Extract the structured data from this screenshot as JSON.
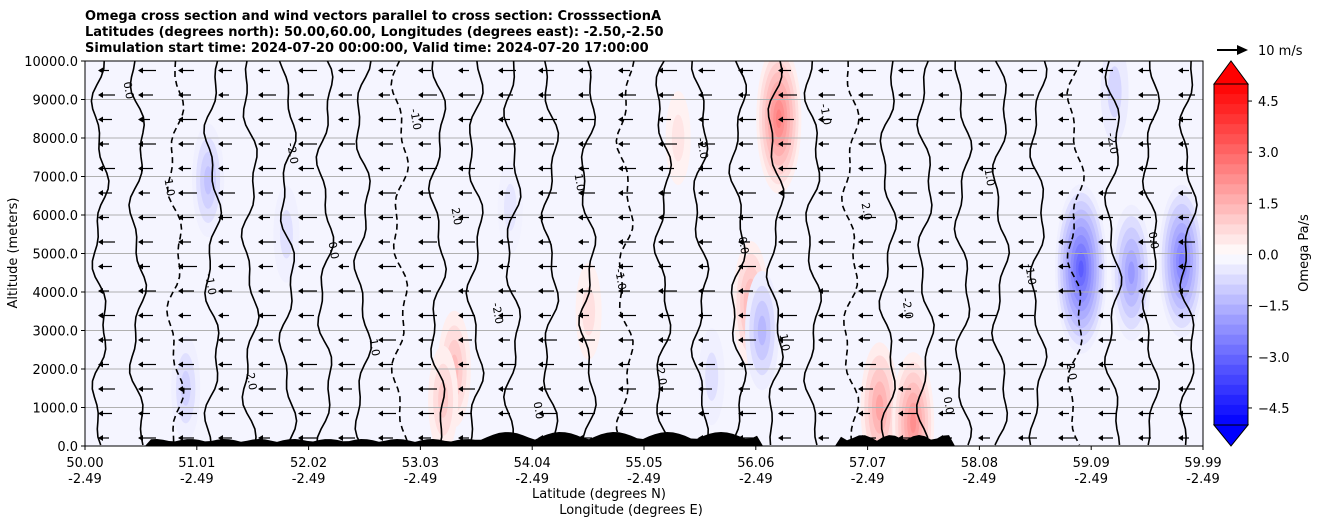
{
  "chart_data": {
    "type": "contour",
    "title": [
      "Omega cross section and wind vectors parallel to cross section: CrosssectionA",
      "Latitudes (degrees north): 50.00,60.00, Longitudes (degrees east): -2.50,-2.50",
      "Simulation start time: 2024-07-20 00:00:00, Valid time: 2024-07-20 17:00:00"
    ],
    "xlabel_lat": "Latitude (degrees N)",
    "xlabel_lon": "Longitude (degrees E)",
    "ylabel": "Altitude (meters)",
    "ylim": [
      0,
      10000
    ],
    "xlim": [
      50.0,
      59.99
    ],
    "yticks": [
      {
        "value": 0,
        "label": "0.0"
      },
      {
        "value": 1000,
        "label": "1000.0"
      },
      {
        "value": 2000,
        "label": "2000.0"
      },
      {
        "value": 3000,
        "label": "3000.0"
      },
      {
        "value": 4000,
        "label": "4000.0"
      },
      {
        "value": 5000,
        "label": "5000.0"
      },
      {
        "value": 6000,
        "label": "6000.0"
      },
      {
        "value": 7000,
        "label": "7000.0"
      },
      {
        "value": 8000,
        "label": "8000.0"
      },
      {
        "value": 9000,
        "label": "9000.0"
      },
      {
        "value": 10000,
        "label": "10000.0"
      }
    ],
    "xticks": [
      {
        "lat": "50.00",
        "lon": "-2.49"
      },
      {
        "lat": "51.01",
        "lon": "-2.49"
      },
      {
        "lat": "52.02",
        "lon": "-2.49"
      },
      {
        "lat": "53.03",
        "lon": "-2.49"
      },
      {
        "lat": "54.04",
        "lon": "-2.49"
      },
      {
        "lat": "55.05",
        "lon": "-2.49"
      },
      {
        "lat": "56.06",
        "lon": "-2.49"
      },
      {
        "lat": "57.07",
        "lon": "-2.49"
      },
      {
        "lat": "58.08",
        "lon": "-2.49"
      },
      {
        "lat": "59.09",
        "lon": "-2.49"
      },
      {
        "lat": "59.99",
        "lon": "-2.49"
      }
    ],
    "grid": true,
    "colorbar": {
      "label": "Omega Pa/s",
      "range": [
        -5.0,
        5.0
      ],
      "ticks": [
        "4.5",
        "3.0",
        "1.5",
        "0.0",
        "−1.5",
        "−3.0",
        "−4.5"
      ],
      "tick_values": [
        4.5,
        3.0,
        1.5,
        0.0,
        -1.5,
        -3.0,
        -4.5
      ],
      "extend": "both",
      "cmap": "bwr"
    },
    "quiver_key": {
      "label": "10 m/s"
    },
    "contour_labels": [
      "0.0",
      "1.0",
      "-1.0",
      "2.0",
      "-2.0"
    ],
    "omega_features": [
      {
        "x": 51.1,
        "y": 6900,
        "omega": -1.2
      },
      {
        "x": 53.3,
        "y": 2000,
        "omega": 1.3
      },
      {
        "x": 53.2,
        "y": 1200,
        "omega": 1.0
      },
      {
        "x": 55.95,
        "y": 3700,
        "omega": 1.6
      },
      {
        "x": 56.05,
        "y": 3000,
        "omega": -1.4
      },
      {
        "x": 56.2,
        "y": 8500,
        "omega": 2.5
      },
      {
        "x": 57.1,
        "y": 1000,
        "omega": 1.8
      },
      {
        "x": 57.4,
        "y": 600,
        "omega": 2.2
      },
      {
        "x": 58.9,
        "y": 4600,
        "omega": -3.2
      },
      {
        "x": 59.35,
        "y": 4500,
        "omega": -2.0
      },
      {
        "x": 59.8,
        "y": 4800,
        "omega": -2.6
      },
      {
        "x": 51.8,
        "y": 5500,
        "omega": -0.6
      },
      {
        "x": 53.8,
        "y": 6200,
        "omega": -0.5
      },
      {
        "x": 55.3,
        "y": 8000,
        "omega": 0.5
      },
      {
        "x": 59.2,
        "y": 9200,
        "omega": -0.8
      },
      {
        "x": 50.9,
        "y": 1500,
        "omega": -0.9
      },
      {
        "x": 54.5,
        "y": 3500,
        "omega": 0.6
      },
      {
        "x": 55.6,
        "y": 1800,
        "omega": -0.6
      }
    ]
  }
}
